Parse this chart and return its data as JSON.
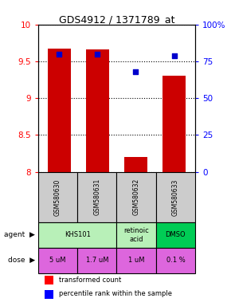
{
  "title": "GDS4912 / 1371789_at",
  "samples": [
    "GSM580630",
    "GSM580631",
    "GSM580632",
    "GSM580633"
  ],
  "bar_values": [
    9.67,
    9.66,
    8.2,
    9.3
  ],
  "bar_bottom": 8.0,
  "percentile_values": [
    80,
    80,
    68,
    79
  ],
  "bar_color": "#cc0000",
  "dot_color": "#0000cc",
  "ylim_left": [
    8.0,
    10.0
  ],
  "ylim_right": [
    0,
    100
  ],
  "yticks_left": [
    8.0,
    8.5,
    9.0,
    9.5,
    10.0
  ],
  "yticks_right": [
    0,
    25,
    50,
    75,
    100
  ],
  "yticklabels_right": [
    "0",
    "25",
    "50",
    "75",
    "100%"
  ],
  "agent_data": [
    [
      0,
      2,
      "KHS101",
      "#b8f0b8"
    ],
    [
      2,
      3,
      "retinoic\nacid",
      "#b8f0b8"
    ],
    [
      3,
      4,
      "DMSO",
      "#00cc55"
    ]
  ],
  "dose_labels": [
    "5 uM",
    "1.7 uM",
    "1 uM",
    "0.1 %"
  ],
  "dose_color": "#dd66dd",
  "sample_bg": "#cccccc",
  "bar_width": 0.6
}
